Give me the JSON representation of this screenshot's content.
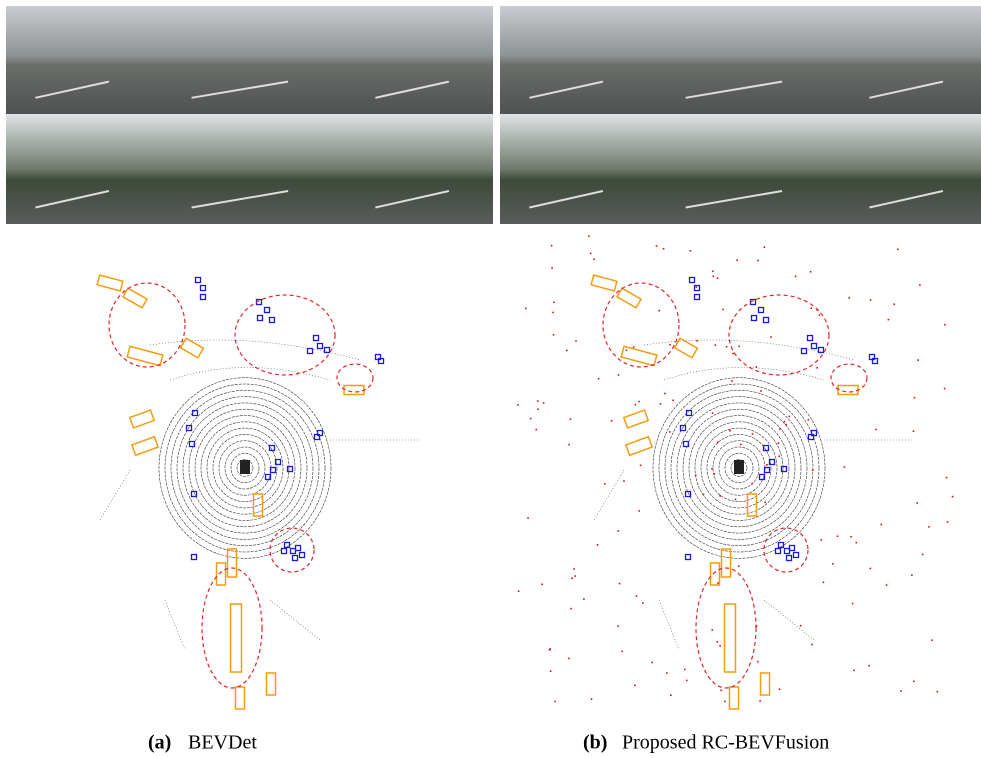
{
  "panels": [
    {
      "label": "(a)",
      "name": "BEVDet"
    },
    {
      "label": "(b)",
      "name": "Proposed RC-BEVFusion"
    }
  ]
}
